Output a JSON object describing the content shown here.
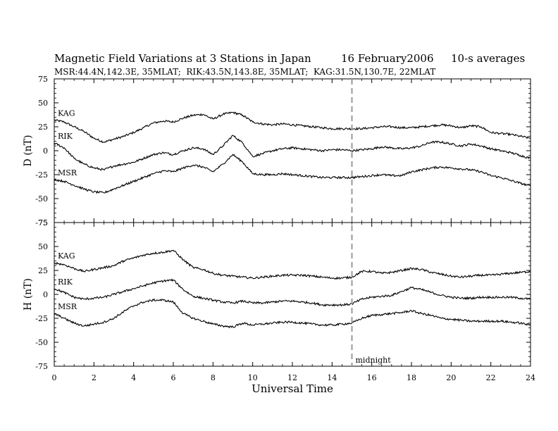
{
  "header": {
    "title": "Magnetic Field Variations at 3 Stations in Japan",
    "date": "16 February2006",
    "averaging": "10-s averages",
    "stations_line": "MSR:44.4N,142.3E, 35MLAT;  RIK:43.5N,143.8E, 35MLAT;  KAG:31.5N,130.7E, 22MLAT"
  },
  "chart_data": {
    "type": "line",
    "xlabel": "Universal Time",
    "xlim": [
      0,
      24
    ],
    "x_ticks": [
      0,
      2,
      4,
      6,
      8,
      10,
      12,
      14,
      16,
      18,
      20,
      22,
      24
    ],
    "annotation": {
      "x": 15,
      "label": "midnight",
      "style": "dashed vertical line"
    },
    "panels": [
      {
        "ylabel": "D (nT)",
        "ylim": [
          -75,
          75
        ],
        "y_ticks": [
          75,
          50,
          25,
          0,
          -25,
          -50,
          -75
        ],
        "series": [
          {
            "name": "KAG",
            "x": [
              0,
              0.5,
              1,
              1.5,
              2,
              2.5,
              3,
              3.5,
              4,
              4.5,
              5,
              5.5,
              6,
              6.5,
              7,
              7.5,
              8,
              8.5,
              9,
              9.5,
              10,
              10.5,
              11,
              11.5,
              12,
              12.5,
              13,
              13.5,
              14,
              14.5,
              15,
              15.5,
              16,
              16.5,
              17,
              17.5,
              18,
              18.5,
              19,
              19.5,
              20,
              20.5,
              21,
              21.5,
              22,
              22.5,
              23,
              23.5,
              24
            ],
            "values": [
              32,
              30,
              25,
              20,
              13,
              9,
              12,
              15,
              19,
              24,
              29,
              31,
              30,
              34,
              37,
              38,
              33,
              38,
              40,
              37,
              30,
              28,
              27,
              28,
              27,
              26,
              25,
              24,
              23,
              23,
              23,
              23,
              24,
              25,
              25,
              24,
              24,
              25,
              26,
              27,
              26,
              24,
              26,
              25,
              19,
              18,
              17,
              15,
              13
            ]
          },
          {
            "name": "RIK",
            "x": [
              0,
              0.5,
              1,
              1.5,
              2,
              2.5,
              3,
              3.5,
              4,
              4.5,
              5,
              5.5,
              6,
              6.5,
              7,
              7.5,
              8,
              8.5,
              9,
              9.5,
              10,
              10.5,
              11,
              11.5,
              12,
              12.5,
              13,
              13.5,
              14,
              14.5,
              15,
              15.5,
              16,
              16.5,
              17,
              17.5,
              18,
              18.5,
              19,
              19.5,
              20,
              20.5,
              21,
              21.5,
              22,
              22.5,
              23,
              23.5,
              24
            ],
            "values": [
              8,
              3,
              -8,
              -14,
              -18,
              -20,
              -16,
              -14,
              -12,
              -8,
              -4,
              -2,
              -4,
              0,
              3,
              2,
              -4,
              5,
              16,
              8,
              -6,
              -3,
              0,
              2,
              3,
              2,
              1,
              0,
              1,
              1,
              0,
              1,
              2,
              4,
              3,
              2,
              3,
              5,
              9,
              9,
              7,
              5,
              7,
              5,
              2,
              0,
              -2,
              -5,
              -8
            ]
          },
          {
            "name": "MSR",
            "x": [
              0,
              0.5,
              1,
              1.5,
              2,
              2.5,
              3,
              3.5,
              4,
              4.5,
              5,
              5.5,
              6,
              6.5,
              7,
              7.5,
              8,
              8.5,
              9,
              9.5,
              10,
              10.5,
              11,
              11.5,
              12,
              12.5,
              13,
              13.5,
              14,
              14.5,
              15,
              15.5,
              16,
              16.5,
              17,
              17.5,
              18,
              18.5,
              19,
              19.5,
              20,
              20.5,
              21,
              21.5,
              22,
              22.5,
              23,
              23.5,
              24
            ],
            "values": [
              -30,
              -32,
              -36,
              -40,
              -43,
              -44,
              -40,
              -36,
              -32,
              -28,
              -24,
              -21,
              -22,
              -18,
              -15,
              -17,
              -22,
              -14,
              -4,
              -12,
              -24,
              -25,
              -25,
              -24,
              -25,
              -26,
              -27,
              -28,
              -28,
              -28,
              -28,
              -27,
              -26,
              -25,
              -26,
              -26,
              -22,
              -20,
              -18,
              -17,
              -18,
              -19,
              -20,
              -22,
              -26,
              -28,
              -31,
              -34,
              -37
            ]
          }
        ]
      },
      {
        "ylabel": "H (nT)",
        "ylim": [
          -75,
          75
        ],
        "y_ticks": [
          75,
          50,
          25,
          0,
          -25,
          -50,
          -75
        ],
        "series": [
          {
            "name": "KAG",
            "x": [
              0,
              0.5,
              1,
              1.5,
              2,
              2.5,
              3,
              3.5,
              4,
              4.5,
              5,
              5.5,
              6,
              6.5,
              7,
              7.5,
              8,
              8.5,
              9,
              9.5,
              10,
              10.5,
              11,
              11.5,
              12,
              12.5,
              13,
              13.5,
              14,
              14.5,
              15,
              15.5,
              16,
              16.5,
              17,
              17.5,
              18,
              18.5,
              19,
              19.5,
              20,
              20.5,
              21,
              21.5,
              22,
              22.5,
              23,
              23.5,
              24
            ],
            "values": [
              33,
              31,
              27,
              24,
              26,
              28,
              30,
              35,
              38,
              41,
              43,
              44,
              46,
              36,
              28,
              26,
              22,
              20,
              19,
              18,
              17,
              18,
              19,
              20,
              20,
              20,
              19,
              18,
              17,
              17,
              18,
              24,
              24,
              22,
              23,
              25,
              27,
              26,
              23,
              21,
              19,
              18,
              19,
              20,
              20,
              21,
              22,
              23,
              24
            ]
          },
          {
            "name": "RIK",
            "x": [
              0,
              0.5,
              1,
              1.5,
              2,
              2.5,
              3,
              3.5,
              4,
              4.5,
              5,
              5.5,
              6,
              6.5,
              7,
              7.5,
              8,
              8.5,
              9,
              9.5,
              10,
              10.5,
              11,
              11.5,
              12,
              12.5,
              13,
              13.5,
              14,
              14.5,
              15,
              15.5,
              16,
              16.5,
              17,
              17.5,
              18,
              18.5,
              19,
              19.5,
              20,
              20.5,
              21,
              21.5,
              22,
              22.5,
              23,
              23.5,
              24
            ],
            "values": [
              6,
              2,
              -3,
              -5,
              -4,
              -3,
              0,
              3,
              6,
              9,
              12,
              14,
              15,
              5,
              -2,
              -4,
              -6,
              -8,
              -9,
              -7,
              -9,
              -9,
              -8,
              -7,
              -7,
              -8,
              -9,
              -11,
              -11,
              -11,
              -10,
              -5,
              -3,
              -2,
              -1,
              3,
              7,
              5,
              2,
              -1,
              -3,
              -4,
              -4,
              -3,
              -3,
              -3,
              -3,
              -4,
              -5
            ]
          },
          {
            "name": "MSR",
            "x": [
              0,
              0.5,
              1,
              1.5,
              2,
              2.5,
              3,
              3.5,
              4,
              4.5,
              5,
              5.5,
              6,
              6.5,
              7,
              7.5,
              8,
              8.5,
              9,
              9.5,
              10,
              10.5,
              11,
              11.5,
              12,
              12.5,
              13,
              13.5,
              14,
              14.5,
              15,
              15.5,
              16,
              16.5,
              17,
              17.5,
              18,
              18.5,
              19,
              19.5,
              20,
              20.5,
              21,
              21.5,
              22,
              22.5,
              23,
              23.5,
              24
            ],
            "values": [
              -20,
              -25,
              -30,
              -33,
              -31,
              -29,
              -25,
              -18,
              -12,
              -8,
              -6,
              -6,
              -8,
              -20,
              -25,
              -28,
              -31,
              -33,
              -34,
              -30,
              -32,
              -31,
              -30,
              -29,
              -29,
              -30,
              -31,
              -32,
              -32,
              -31,
              -30,
              -25,
              -22,
              -21,
              -20,
              -19,
              -17,
              -20,
              -22,
              -25,
              -26,
              -27,
              -28,
              -28,
              -28,
              -28,
              -29,
              -30,
              -32
            ]
          }
        ]
      }
    ]
  }
}
